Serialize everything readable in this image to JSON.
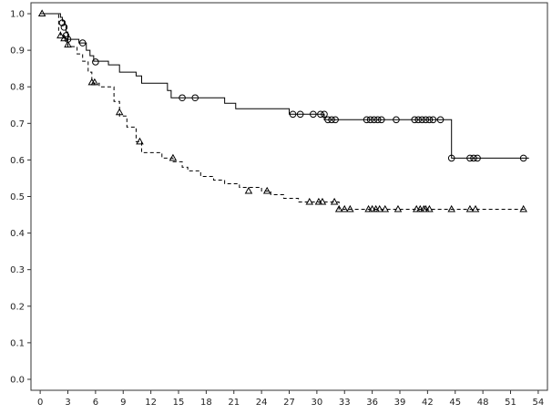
{
  "chart_data": {
    "type": "line",
    "title": "",
    "xlabel": "",
    "ylabel": "",
    "xlim": [
      -1,
      55
    ],
    "ylim": [
      -0.03,
      1.03
    ],
    "x_ticks": [
      0,
      3,
      6,
      9,
      12,
      15,
      18,
      21,
      24,
      27,
      30,
      33,
      36,
      39,
      42,
      45,
      48,
      51,
      54
    ],
    "y_ticks": [
      0.0,
      0.1,
      0.2,
      0.3,
      0.4,
      0.5,
      0.6,
      0.7,
      0.8,
      0.9,
      1.0
    ],
    "grid": false,
    "series": [
      {
        "marker": "circle",
        "line_style": "solid",
        "steps": [
          [
            0,
            1.0
          ],
          [
            2.2,
            0.99
          ],
          [
            2.4,
            0.98
          ],
          [
            2.6,
            0.97
          ],
          [
            2.8,
            0.95
          ],
          [
            3.0,
            0.93
          ],
          [
            4.2,
            0.92
          ],
          [
            5.0,
            0.9
          ],
          [
            5.4,
            0.885
          ],
          [
            5.8,
            0.87
          ],
          [
            7.4,
            0.86
          ],
          [
            8.6,
            0.84
          ],
          [
            10.4,
            0.83
          ],
          [
            11.0,
            0.81
          ],
          [
            13.8,
            0.79
          ],
          [
            14.2,
            0.77
          ],
          [
            20.0,
            0.755
          ],
          [
            21.2,
            0.74
          ],
          [
            27.0,
            0.725
          ],
          [
            30.8,
            0.71
          ],
          [
            44.4,
            0.71
          ],
          [
            44.6,
            0.605
          ],
          [
            53,
            0.605
          ]
        ],
        "censored": [
          [
            2.4,
            0.975
          ],
          [
            2.6,
            0.963
          ],
          [
            2.8,
            0.94
          ],
          [
            3.0,
            0.93
          ],
          [
            4.6,
            0.92
          ],
          [
            6.0,
            0.868
          ],
          [
            15.4,
            0.77
          ],
          [
            16.8,
            0.77
          ],
          [
            27.4,
            0.725
          ],
          [
            28.2,
            0.725
          ],
          [
            29.6,
            0.725
          ],
          [
            30.4,
            0.725
          ],
          [
            30.8,
            0.725
          ],
          [
            31.2,
            0.71
          ],
          [
            31.6,
            0.71
          ],
          [
            32.0,
            0.71
          ],
          [
            35.4,
            0.71
          ],
          [
            35.8,
            0.71
          ],
          [
            36.2,
            0.71
          ],
          [
            36.6,
            0.71
          ],
          [
            37.0,
            0.71
          ],
          [
            38.6,
            0.71
          ],
          [
            40.6,
            0.71
          ],
          [
            41.0,
            0.71
          ],
          [
            41.4,
            0.71
          ],
          [
            41.8,
            0.71
          ],
          [
            42.2,
            0.71
          ],
          [
            42.6,
            0.71
          ],
          [
            43.4,
            0.71
          ],
          [
            44.6,
            0.605
          ],
          [
            46.6,
            0.605
          ],
          [
            47.0,
            0.605
          ],
          [
            47.4,
            0.605
          ],
          [
            52.4,
            0.605
          ]
        ]
      },
      {
        "marker": "triangle",
        "line_style": "dashed",
        "steps": [
          [
            0,
            1.0
          ],
          [
            2.0,
            0.95
          ],
          [
            2.2,
            0.94
          ],
          [
            2.6,
            0.93
          ],
          [
            3.0,
            0.91
          ],
          [
            4.0,
            0.89
          ],
          [
            4.6,
            0.87
          ],
          [
            5.2,
            0.84
          ],
          [
            5.6,
            0.81
          ],
          [
            6.4,
            0.8
          ],
          [
            8.0,
            0.76
          ],
          [
            8.6,
            0.72
          ],
          [
            9.4,
            0.69
          ],
          [
            10.4,
            0.65
          ],
          [
            11.0,
            0.62
          ],
          [
            13.2,
            0.605
          ],
          [
            14.4,
            0.595
          ],
          [
            15.4,
            0.58
          ],
          [
            16.0,
            0.57
          ],
          [
            17.4,
            0.555
          ],
          [
            18.8,
            0.545
          ],
          [
            20.0,
            0.535
          ],
          [
            21.6,
            0.525
          ],
          [
            24.0,
            0.515
          ],
          [
            25.0,
            0.505
          ],
          [
            26.4,
            0.495
          ],
          [
            28.0,
            0.485
          ],
          [
            32.4,
            0.465
          ],
          [
            52.5,
            0.465
          ]
        ],
        "censored": [
          [
            0.2,
            1.0
          ],
          [
            2.2,
            0.94
          ],
          [
            2.6,
            0.932
          ],
          [
            3.0,
            0.915
          ],
          [
            5.6,
            0.812
          ],
          [
            5.9,
            0.812
          ],
          [
            8.6,
            0.73
          ],
          [
            10.8,
            0.65
          ],
          [
            14.4,
            0.605
          ],
          [
            22.6,
            0.515
          ],
          [
            24.6,
            0.515
          ],
          [
            29.2,
            0.485
          ],
          [
            30.2,
            0.485
          ],
          [
            30.6,
            0.485
          ],
          [
            31.9,
            0.485
          ],
          [
            32.4,
            0.465
          ],
          [
            33.0,
            0.465
          ],
          [
            33.6,
            0.465
          ],
          [
            35.6,
            0.465
          ],
          [
            36.0,
            0.465
          ],
          [
            36.4,
            0.465
          ],
          [
            36.8,
            0.465
          ],
          [
            37.4,
            0.465
          ],
          [
            38.8,
            0.465
          ],
          [
            40.8,
            0.465
          ],
          [
            41.2,
            0.465
          ],
          [
            41.6,
            0.465
          ],
          [
            41.8,
            0.465
          ],
          [
            42.2,
            0.465
          ],
          [
            44.6,
            0.465
          ],
          [
            46.6,
            0.465
          ],
          [
            47.2,
            0.465
          ],
          [
            52.4,
            0.465
          ]
        ]
      }
    ]
  }
}
